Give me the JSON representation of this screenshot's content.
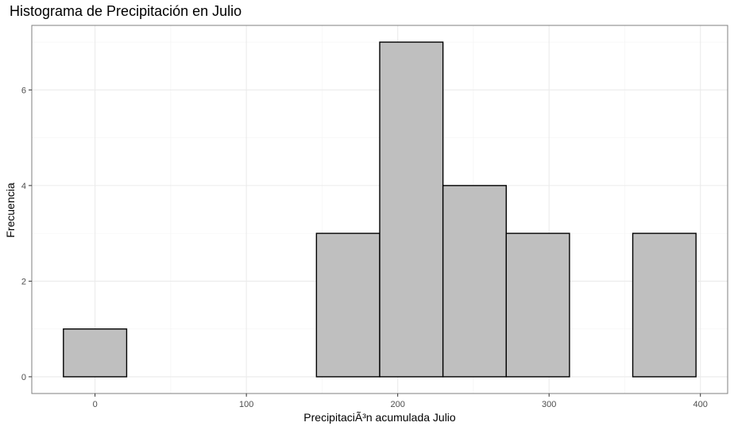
{
  "chart_data": {
    "type": "bar",
    "title": "Histograma de Precipitación en Julio",
    "xlabel": "PrecipitaciÃ³n acumulada Julio",
    "ylabel": "Frecuencia",
    "bin_width": 41.8,
    "bins": [
      {
        "start": -20.9,
        "end": 20.9,
        "count": 1
      },
      {
        "start": 20.9,
        "end": 62.7,
        "count": 0
      },
      {
        "start": 62.7,
        "end": 104.5,
        "count": 0
      },
      {
        "start": 104.5,
        "end": 146.3,
        "count": 0
      },
      {
        "start": 146.3,
        "end": 188.1,
        "count": 3
      },
      {
        "start": 188.1,
        "end": 229.9,
        "count": 7
      },
      {
        "start": 229.9,
        "end": 271.7,
        "count": 4
      },
      {
        "start": 271.7,
        "end": 313.5,
        "count": 3
      },
      {
        "start": 313.5,
        "end": 355.3,
        "count": 0
      },
      {
        "start": 355.3,
        "end": 397.1,
        "count": 3
      }
    ],
    "xlim": [
      -41.8,
      418
    ],
    "ylim": [
      -0.35,
      7.35
    ],
    "x_ticks": [
      0,
      100,
      200,
      300,
      400
    ],
    "x_tick_labels": [
      "0",
      "100",
      "200",
      "300",
      "400"
    ],
    "y_ticks": [
      0,
      2,
      4,
      6
    ],
    "y_tick_labels": [
      "0",
      "2",
      "4",
      "6"
    ],
    "grid": true,
    "legend": "none"
  }
}
